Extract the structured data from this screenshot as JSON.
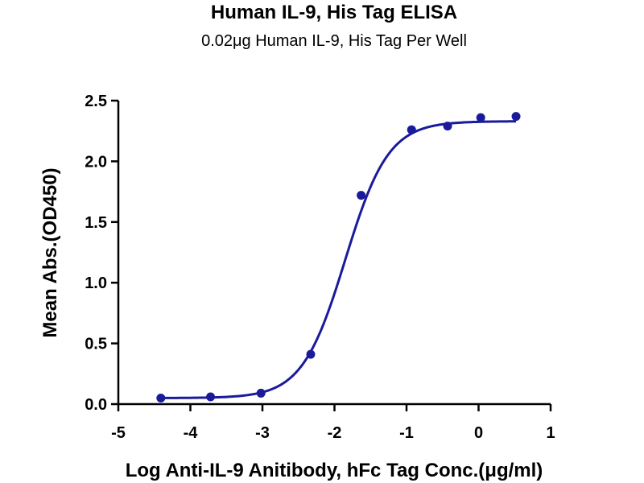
{
  "chart_data": {
    "type": "scatter",
    "title": "Human IL-9, His Tag ELISA",
    "subtitle": "0.02μg Human IL-9, His Tag Per Well",
    "xlabel": "Log Anti-IL-9 Anitibody, hFc Tag Conc.(μg/ml)",
    "ylabel": "Mean Abs.(OD450)",
    "xlim": [
      -5,
      1
    ],
    "ylim": [
      0,
      2.5
    ],
    "xticks": [
      "-5",
      "-4",
      "-3",
      "-2",
      "-1",
      "0",
      "1"
    ],
    "yticks": [
      "0.0",
      "0.5",
      "1.0",
      "1.5",
      "2.0",
      "2.5"
    ],
    "series": [
      {
        "x": [
          -4.41,
          -3.72,
          -3.02,
          -2.33,
          -1.63,
          -0.93,
          -0.43,
          0.03,
          0.52
        ],
        "y": [
          0.05,
          0.06,
          0.09,
          0.41,
          1.72,
          2.26,
          2.29,
          2.36,
          2.37
        ],
        "fit": {
          "model": "4PL",
          "bottom": 0.05,
          "top": 2.33,
          "logEC50": -1.85,
          "hillslope": 1.45
        },
        "color": "#1a1a9c"
      }
    ],
    "grid": false,
    "legend": "none"
  }
}
